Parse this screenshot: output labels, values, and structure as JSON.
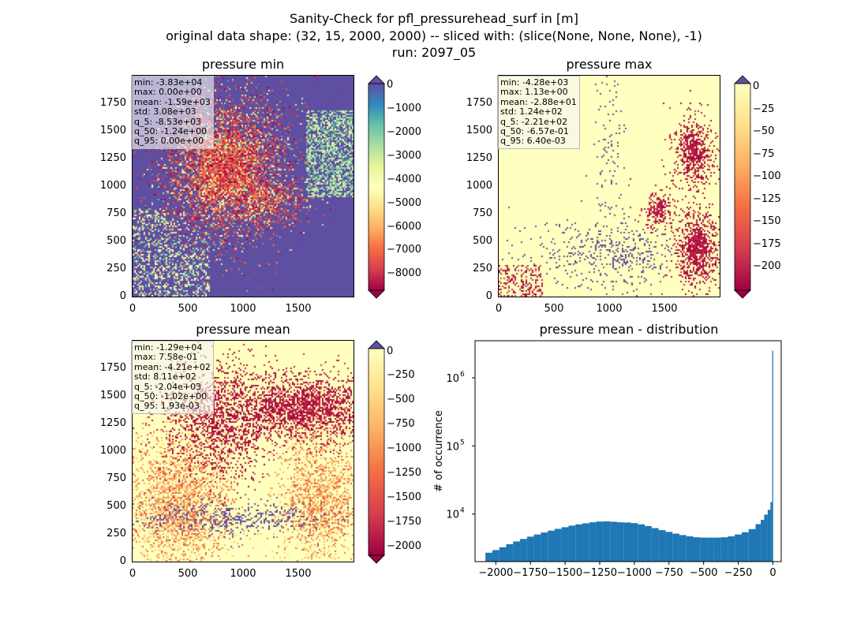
{
  "figure": {
    "title_line1": "Sanity-Check for pfl_pressurehead_surf in [m]",
    "title_line2": "original data shape: (32, 15, 2000, 2000) -- sliced with: (slice(None, None, None), -1)",
    "title_line3": "run: 2097_05"
  },
  "panels": [
    {
      "title": "pressure min",
      "stats": "min: -3.83e+04\nmax: 0.00e+00\nmean: -1.59e+03\nstd: 3.08e+03\nq_5: -8.53e+03\nq_50: -1.24e+00\nq_95: 0.00e+00",
      "colorbar_ticks": [
        "0",
        "−1000",
        "−2000",
        "−3000",
        "−4000",
        "−5000",
        "−6000",
        "−7000",
        "−8000"
      ]
    },
    {
      "title": "pressure max",
      "stats": "min: -4.28e+03\nmax: 1.13e+00\nmean: -2.88e+01\nstd: 1.24e+02\nq_5: -2.21e+02\nq_50: -6.57e-01\nq_95: 6.40e-03",
      "colorbar_ticks": [
        "0",
        "−25",
        "−50",
        "−75",
        "−100",
        "−125",
        "−150",
        "−175",
        "−200"
      ]
    },
    {
      "title": "pressure mean",
      "stats": "min: -1.29e+04\nmax: 7.58e-01\nmean: -4.21e+02\nstd: 8.11e+02\nq_5: -2.04e+03\nq_50: -1.02e+00\nq_95: 1.93e-03",
      "colorbar_ticks": [
        "0",
        "−250",
        "−500",
        "−750",
        "−1000",
        "−1250",
        "−1500",
        "−1750",
        "−2000"
      ]
    }
  ],
  "map_axis": {
    "x_ticks": [
      "0",
      "500",
      "1000",
      "1500"
    ],
    "y_ticks": [
      "0",
      "250",
      "500",
      "750",
      "1000",
      "1250",
      "1500",
      "1750"
    ]
  },
  "colors": {
    "spectral_low": "#9e0142",
    "spectral_mid": "#ffffbf",
    "spectral_high": "#5e4fa2",
    "hist_bar": "#1f77b4"
  },
  "chart_data": {
    "type": "bar",
    "title": "pressure mean - distribution",
    "xlabel": "",
    "ylabel": "# of occurrence",
    "y_scale": "log",
    "xlim": [
      -2150,
      60
    ],
    "ylim": [
      2000,
      3500000
    ],
    "x_ticks": [
      "−2000",
      "−1750",
      "−1500",
      "−1250",
      "−1000",
      "−750",
      "−500",
      "−250",
      "0"
    ],
    "y_ticks": [
      "10",
      "10",
      "10"
    ],
    "y_tick_exponents": [
      "4",
      "5",
      "6"
    ],
    "series": [
      {
        "x": [
          -2050,
          -2000,
          -1950,
          -1900,
          -1850,
          -1800,
          -1750,
          -1700,
          -1650,
          -1600,
          -1550,
          -1500,
          -1450,
          -1400,
          -1350,
          -1300,
          -1250,
          -1200,
          -1150,
          -1100,
          -1050,
          -1000,
          -950,
          -900,
          -850,
          -800,
          -750,
          -700,
          -650,
          -600,
          -550,
          -500,
          -450,
          -400,
          -350,
          -300,
          -250,
          -200,
          -150,
          -100,
          -75,
          -50,
          -25,
          -10,
          0
        ],
        "values": [
          2700,
          2950,
          3250,
          3600,
          3950,
          4300,
          4650,
          5000,
          5350,
          5700,
          6050,
          6400,
          6750,
          7050,
          7300,
          7550,
          7750,
          7800,
          7700,
          7550,
          7500,
          7350,
          7050,
          6650,
          6200,
          5800,
          5450,
          5150,
          4900,
          4700,
          4550,
          4500,
          4500,
          4500,
          4550,
          4700,
          5000,
          5400,
          6000,
          7100,
          8200,
          9800,
          11500,
          15000,
          2500000
        ]
      }
    ]
  }
}
